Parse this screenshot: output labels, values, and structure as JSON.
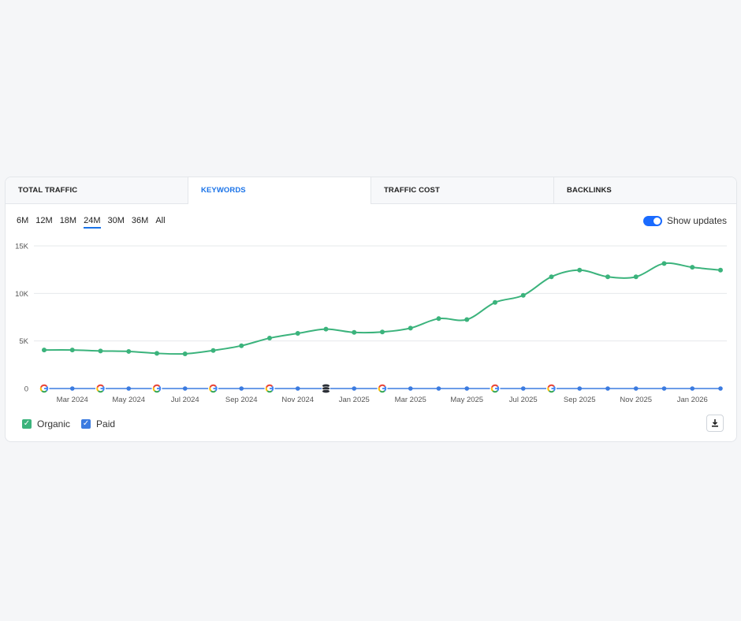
{
  "tabs": [
    {
      "label": "TOTAL TRAFFIC",
      "active": false
    },
    {
      "label": "KEYWORDS",
      "active": true
    },
    {
      "label": "TRAFFIC COST",
      "active": false
    },
    {
      "label": "BACKLINKS",
      "active": false
    }
  ],
  "periods": [
    "6M",
    "12M",
    "18M",
    "24M",
    "30M",
    "36M",
    "All"
  ],
  "active_period": "24M",
  "show_updates": {
    "label": "Show updates",
    "enabled": true
  },
  "legend": [
    {
      "label": "Organic",
      "color": "#3bb37c",
      "checked": true
    },
    {
      "label": "Paid",
      "color": "#3b7be0",
      "checked": true
    }
  ],
  "download_icon": "download-icon",
  "chart_data": {
    "type": "line",
    "title": "",
    "xlabel": "",
    "ylabel": "",
    "ylim": [
      0,
      15000
    ],
    "yticks": [
      "0",
      "5K",
      "10K",
      "15K"
    ],
    "grid": true,
    "legend_position": "bottom-left",
    "x_tick_labels": [
      "Mar 2024",
      "May 2024",
      "Jul 2024",
      "Sep 2024",
      "Nov 2024",
      "Jan 2025",
      "Mar 2025",
      "May 2025",
      "Jul 2025",
      "Sep 2025",
      "Nov 2025",
      "Jan 2026"
    ],
    "x": [
      "Feb 2024",
      "Mar 2024",
      "Apr 2024",
      "May 2024",
      "Jun 2024",
      "Jul 2024",
      "Aug 2024",
      "Sep 2024",
      "Oct 2024",
      "Nov 2024",
      "Dec 2024",
      "Jan 2025",
      "Feb 2025",
      "Mar 2025",
      "Apr 2025",
      "May 2025",
      "Jun 2025",
      "Jul 2025",
      "Aug 2025",
      "Sep 2025",
      "Oct 2025",
      "Nov 2025",
      "Dec 2025",
      "Jan 2026",
      "Feb 2026"
    ],
    "series": [
      {
        "name": "Organic",
        "color": "#3bb37c",
        "values": [
          4050,
          4050,
          3950,
          3900,
          3700,
          3650,
          4000,
          4500,
          5300,
          5800,
          6250,
          5900,
          5950,
          6350,
          7350,
          7250,
          9050,
          9800,
          11750,
          12450,
          11750,
          11750,
          13150,
          12750,
          12450
        ]
      },
      {
        "name": "Paid",
        "color": "#3b7be0",
        "values": [
          0,
          0,
          0,
          0,
          0,
          0,
          0,
          0,
          0,
          0,
          0,
          0,
          0,
          0,
          0,
          0,
          0,
          0,
          0,
          0,
          0,
          0,
          0,
          0,
          0
        ]
      }
    ],
    "update_markers": [
      {
        "x": "Feb 2024",
        "type": "google-icon"
      },
      {
        "x": "Apr 2024",
        "type": "google-icon"
      },
      {
        "x": "Jun 2024",
        "type": "google-icon"
      },
      {
        "x": "Aug 2024",
        "type": "google-icon"
      },
      {
        "x": "Oct 2024",
        "type": "google-icon"
      },
      {
        "x": "Dec 2024",
        "type": "database-icon"
      },
      {
        "x": "Feb 2025",
        "type": "google-icon"
      },
      {
        "x": "Jun 2025",
        "type": "google-icon"
      },
      {
        "x": "Aug 2025",
        "type": "google-icon"
      }
    ]
  }
}
